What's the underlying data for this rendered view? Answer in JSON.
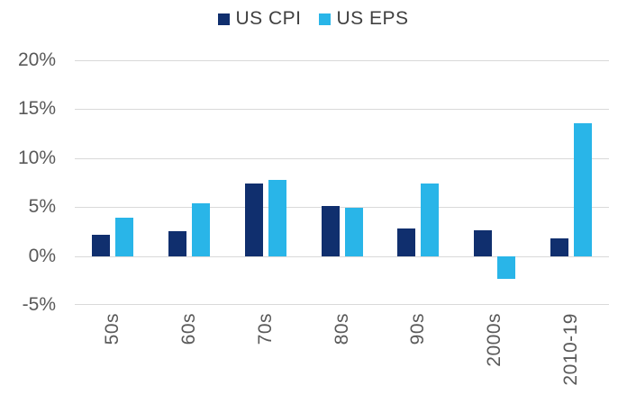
{
  "chart": {
    "background": "#ffffff",
    "grid_color": "#d9d9d9",
    "axis_text_color": "#595959",
    "legend_text_color": "#404040"
  },
  "legend": {
    "items": [
      {
        "label": "US CPI",
        "color": "#102f6e"
      },
      {
        "label": "US EPS",
        "color": "#29b5e8"
      }
    ]
  },
  "chart_data": {
    "type": "bar",
    "title": "",
    "xlabel": "",
    "ylabel": "",
    "categories": [
      "50s",
      "60s",
      "70s",
      "80s",
      "90s",
      "2000s",
      "2010-19"
    ],
    "series": [
      {
        "name": "US CPI",
        "color": "#102f6e",
        "values": [
          2.2,
          2.5,
          7.4,
          5.1,
          2.8,
          2.6,
          1.8
        ]
      },
      {
        "name": "US EPS",
        "color": "#29b5e8",
        "values": [
          3.9,
          5.4,
          7.8,
          4.9,
          7.4,
          -2.3,
          13.6
        ]
      }
    ],
    "ylim": [
      -5,
      20
    ],
    "ytick_step": 5,
    "ytick_labels": [
      "20%",
      "15%",
      "10%",
      "5%",
      "0%",
      "-5%"
    ],
    "grid": true,
    "legend_position": "top"
  }
}
